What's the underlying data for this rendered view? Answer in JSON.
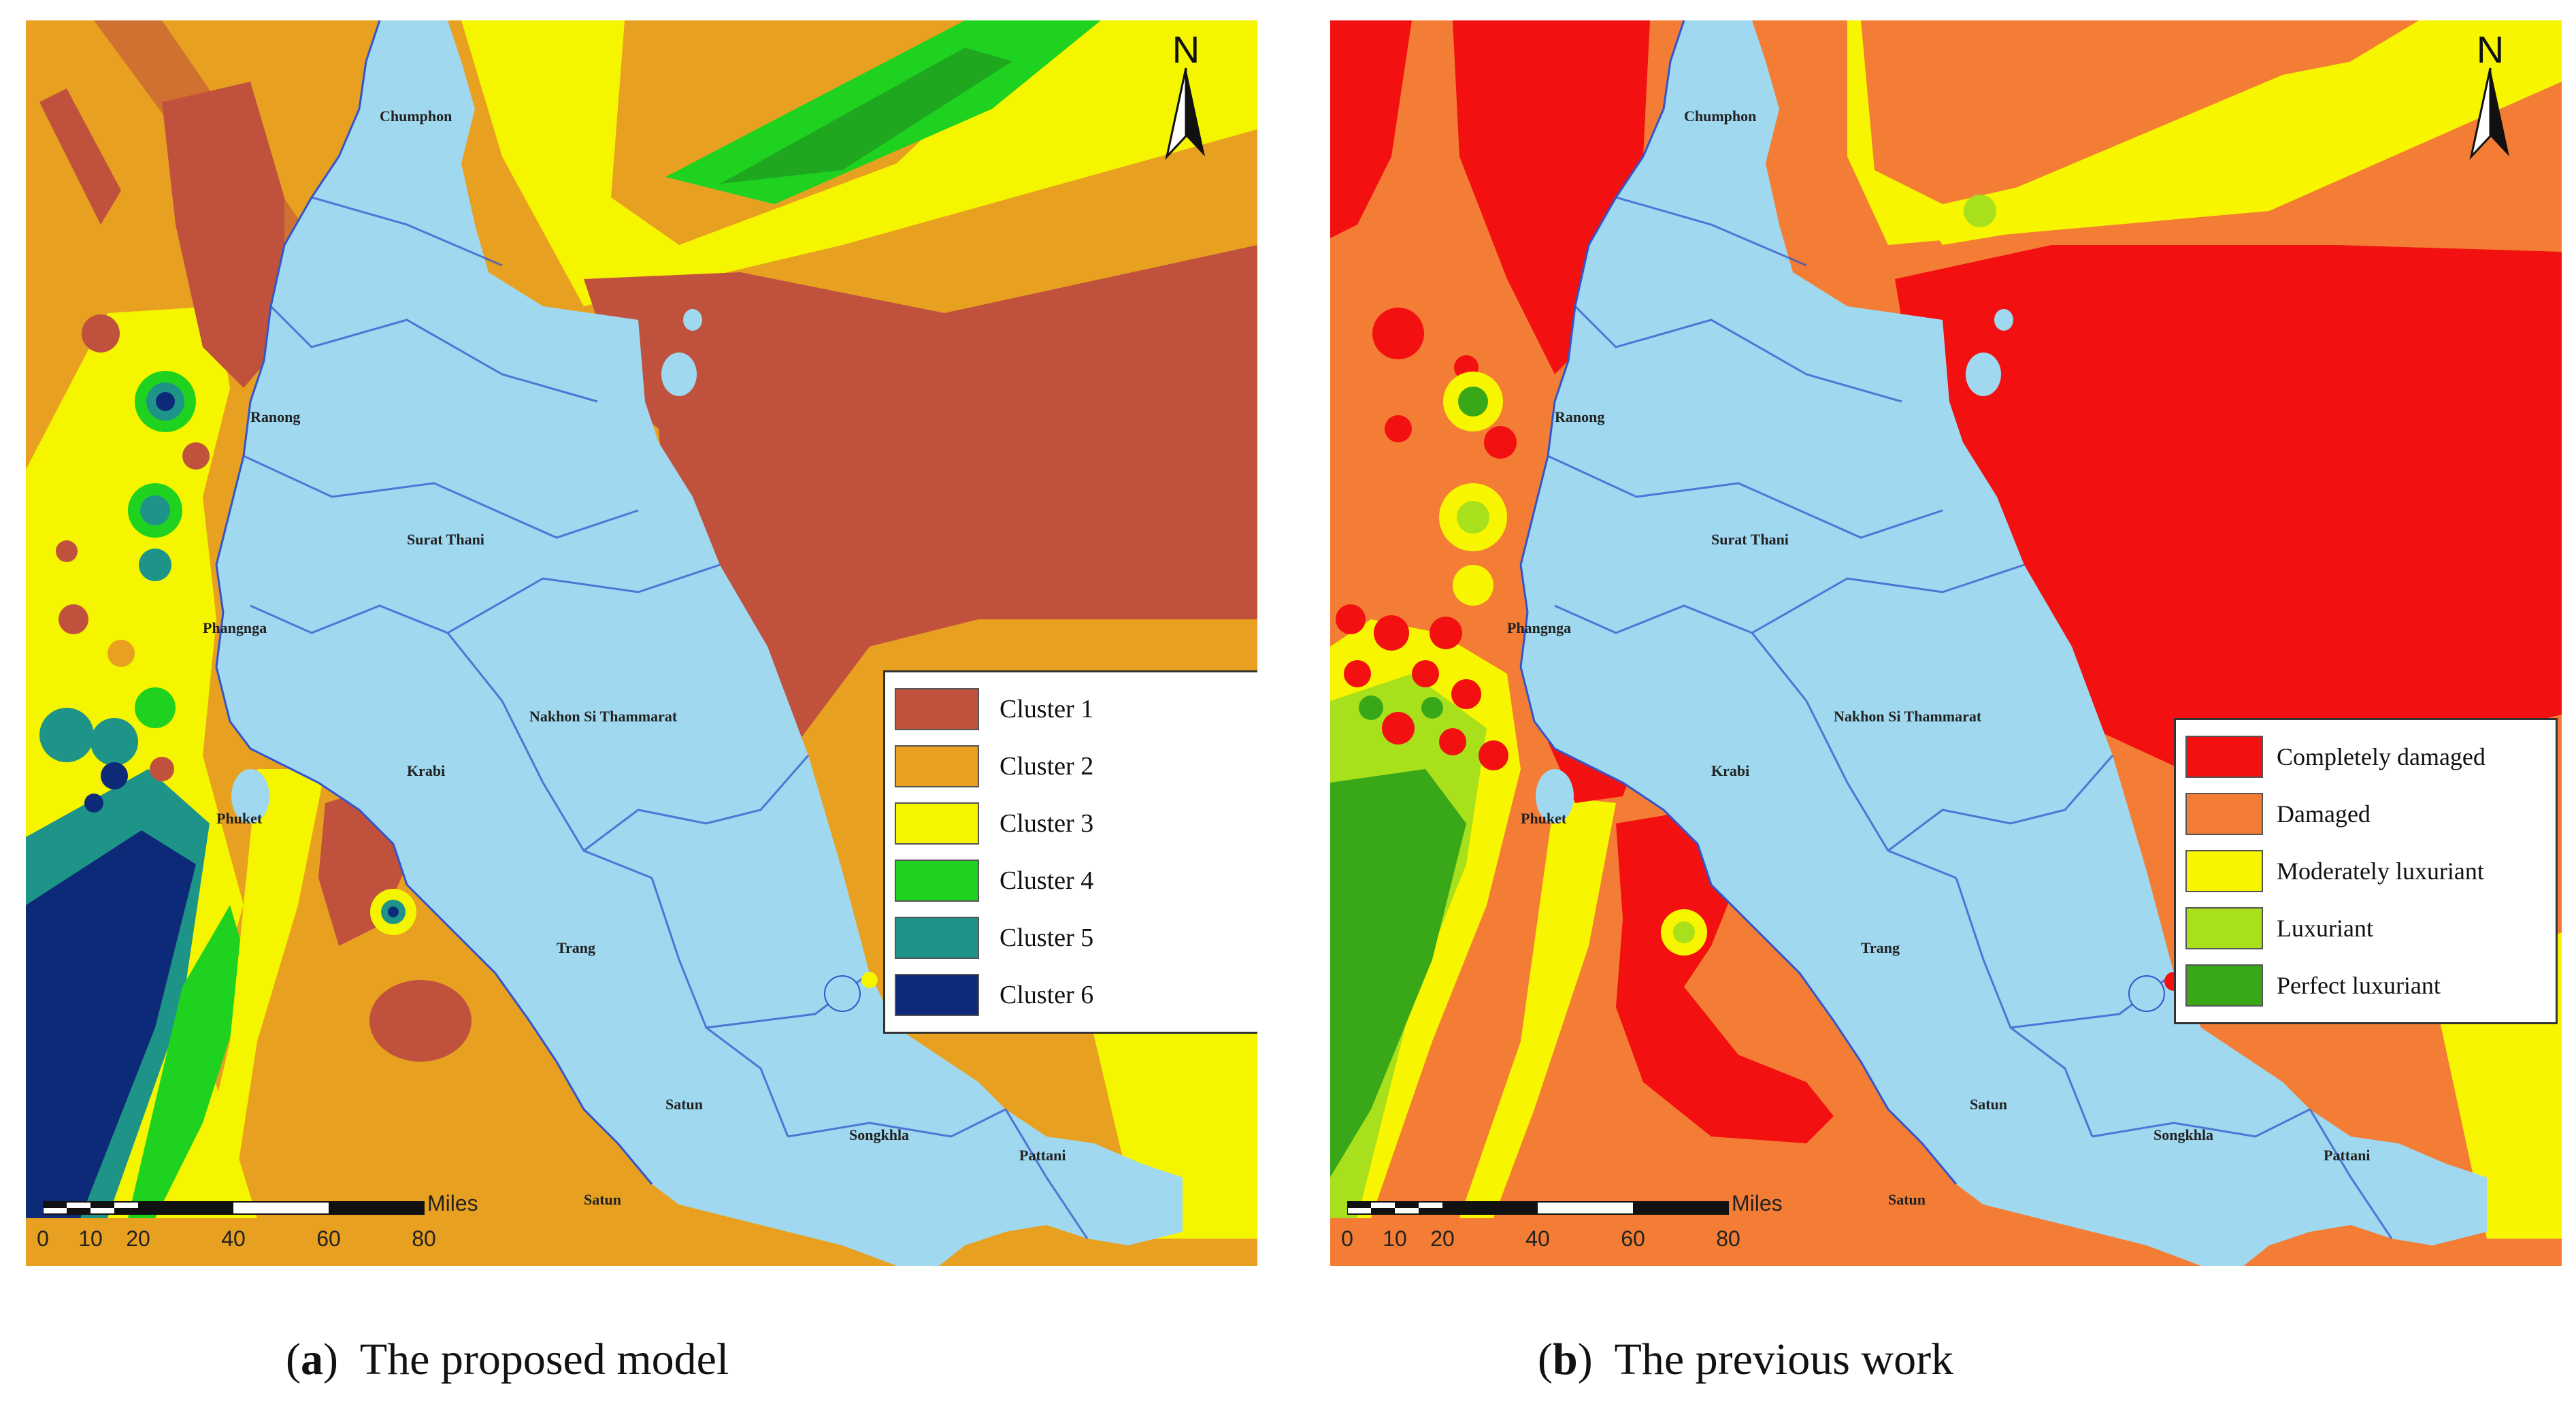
{
  "panels": [
    {
      "id": "a",
      "caption_letter": "a",
      "caption_text": "The proposed model",
      "north_label": "N",
      "legend": [
        {
          "label": "Cluster 1",
          "color": "#c0523d"
        },
        {
          "label": "Cluster 2",
          "color": "#e8a020"
        },
        {
          "label": "Cluster 3",
          "color": "#f5f500"
        },
        {
          "label": "Cluster 4",
          "color": "#1fd21f"
        },
        {
          "label": "Cluster 5",
          "color": "#1e9488"
        },
        {
          "label": "Cluster 6",
          "color": "#0d2a78"
        }
      ],
      "places": [
        "Chumphon",
        "Ranong",
        "Surat Thani",
        "Phangnga",
        "Krabi",
        "Nakhon Si Thammarat",
        "Phuket",
        "Trang",
        "Satun",
        "Songkhla",
        "Pattani",
        "Satun"
      ],
      "scale_ticks": [
        "0",
        "10",
        "20",
        "40",
        "60",
        "80"
      ],
      "scale_units": "Miles"
    },
    {
      "id": "b",
      "caption_letter": "b",
      "caption_text": "The previous work",
      "north_label": "N",
      "legend": [
        {
          "label": "Completely damaged",
          "color": "#f21010"
        },
        {
          "label": "Damaged",
          "color": "#f47d35"
        },
        {
          "label": "Moderately luxuriant",
          "color": "#f7f500"
        },
        {
          "label": "Luxuriant",
          "color": "#a8e01c"
        },
        {
          "label": "Perfect luxuriant",
          "color": "#38a818"
        }
      ],
      "places": [
        "Chumphon",
        "Ranong",
        "Surat Thani",
        "Phangnga",
        "Krabi",
        "Nakhon Si Thammarat",
        "Phuket",
        "Trang",
        "Satun",
        "Songkhla",
        "Pattani",
        "Satun"
      ],
      "scale_ticks": [
        "0",
        "10",
        "20",
        "40",
        "60",
        "80"
      ],
      "scale_units": "Miles"
    }
  ],
  "land_color": "#9fd8ef",
  "boundary_color": "#3355cc"
}
